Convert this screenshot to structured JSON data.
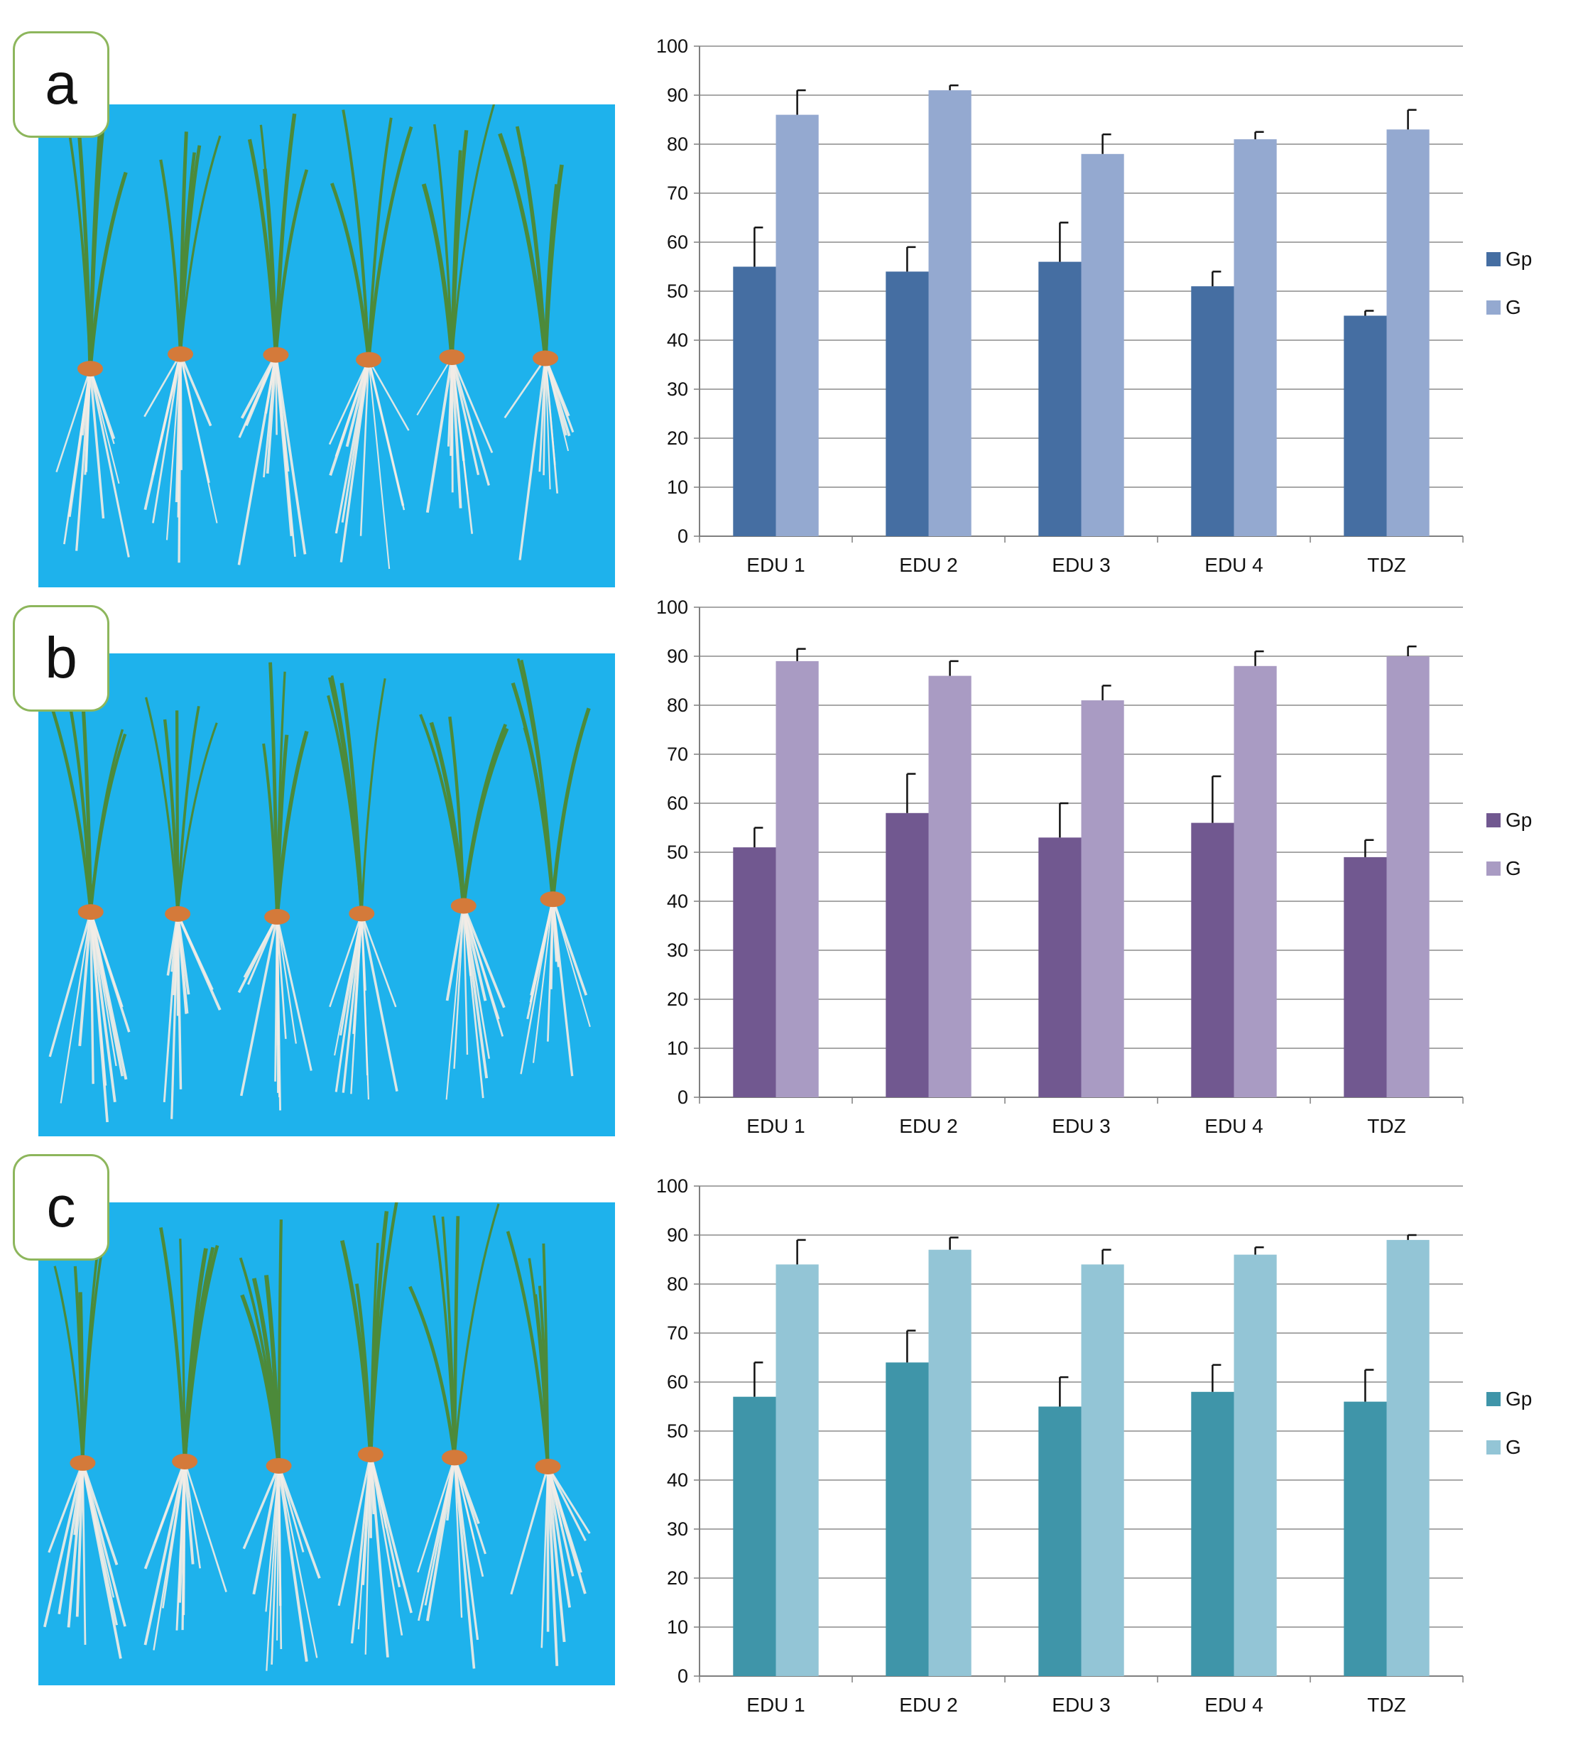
{
  "panels": [
    {
      "label": "a",
      "photo": "six rice seedlings with roots on blue background"
    },
    {
      "label": "b",
      "photo": "six rice seedlings with roots on blue background"
    },
    {
      "label": "c",
      "photo": "six rice seedlings with roots on blue background"
    }
  ],
  "colors": {
    "photo_background": "#1eb2ec",
    "grid": "#8c8c8c",
    "axis": "#7f7f7f",
    "text": "#111111",
    "label_border": "#8db65c"
  },
  "chart_data": [
    {
      "type": "bar",
      "panel": "a",
      "categories": [
        "EDU 1",
        "EDU 2",
        "EDU 3",
        "EDU 4",
        "TDZ"
      ],
      "series": [
        {
          "name": "Gp",
          "color": "#456ea2",
          "values": [
            55,
            54,
            56,
            51,
            45
          ],
          "errors": [
            8,
            5,
            8,
            3,
            1
          ]
        },
        {
          "name": "G",
          "color": "#94a9d0",
          "values": [
            86,
            91,
            78,
            81,
            83
          ],
          "errors": [
            5,
            1,
            4,
            1.5,
            4
          ]
        }
      ],
      "yticks": [
        0,
        10,
        20,
        30,
        40,
        50,
        60,
        70,
        80,
        90,
        100
      ],
      "ylim": [
        0,
        100
      ],
      "grid": true,
      "legend": "right"
    },
    {
      "type": "bar",
      "panel": "b",
      "categories": [
        "EDU 1",
        "EDU 2",
        "EDU 3",
        "EDU 4",
        "TDZ"
      ],
      "series": [
        {
          "name": "Gp",
          "color": "#715890",
          "values": [
            51,
            58,
            53,
            56,
            49
          ],
          "errors": [
            4,
            8,
            7,
            9.5,
            3.5
          ]
        },
        {
          "name": "G",
          "color": "#a99bc3",
          "values": [
            89,
            86,
            81,
            88,
            90
          ],
          "errors": [
            2.5,
            3,
            3,
            3,
            2
          ]
        }
      ],
      "yticks": [
        0,
        10,
        20,
        30,
        40,
        50,
        60,
        70,
        80,
        90,
        100
      ],
      "ylim": [
        0,
        100
      ],
      "grid": true,
      "legend": "right"
    },
    {
      "type": "bar",
      "panel": "c",
      "categories": [
        "EDU 1",
        "EDU 2",
        "EDU 3",
        "EDU 4",
        "TDZ"
      ],
      "series": [
        {
          "name": "Gp",
          "color": "#3f95a9",
          "values": [
            57,
            64,
            55,
            58,
            56
          ],
          "errors": [
            7,
            6.5,
            6,
            5.5,
            6.5
          ]
        },
        {
          "name": "G",
          "color": "#93c5d6",
          "values": [
            84,
            87,
            84,
            86,
            89
          ],
          "errors": [
            5,
            2.5,
            3,
            1.5,
            1
          ]
        }
      ],
      "yticks": [
        0,
        10,
        20,
        30,
        40,
        50,
        60,
        70,
        80,
        90,
        100
      ],
      "ylim": [
        0,
        100
      ],
      "grid": true,
      "legend": "right"
    }
  ]
}
